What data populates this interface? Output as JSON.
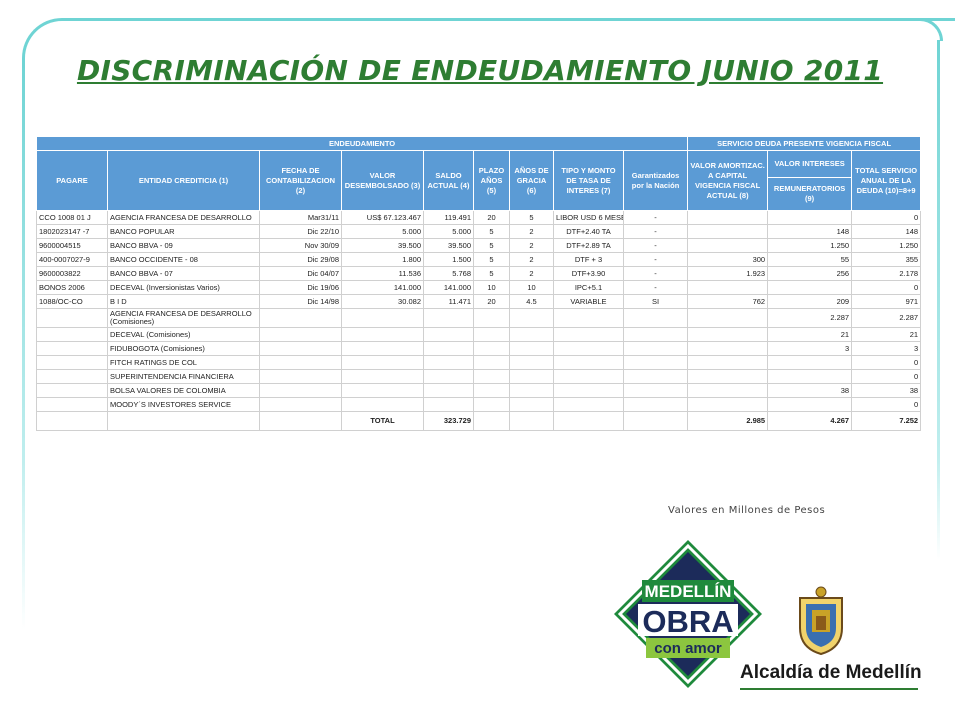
{
  "title": "DISCRIMINACIÓN DE ENDEUDAMIENTO JUNIO 2011",
  "table": {
    "group_headers": [
      "ENDEUDAMIENTO",
      "SERVICIO DEUDA PRESENTE VIGENCIA FISCAL"
    ],
    "headers": {
      "pagare": "PAGARE",
      "entidad": "ENTIDAD CREDITICIA (1)",
      "fecha": "FECHA DE CONTABILIZACION (2)",
      "valor": "VALOR DESEMBOLSADO (3)",
      "saldo": "SALDO ACTUAL (4)",
      "plazo": "PLAZO AÑOS (5)",
      "gracia": "AÑOS DE GRACIA (6)",
      "tipo": "TIPO Y MONTO DE TASA DE INTERES (7)",
      "garantizados": "Garantizados por la Nación",
      "amortiz": "VALOR AMORTIZAC. A CAPITAL VIGENCIA FISCAL ACTUAL (8)",
      "intereses": "VALOR INTERESES",
      "remuneratorios": "REMUNERATORIOS (9)",
      "total": "TOTAL SERVICIO ANUAL DE LA DEUDA (10)=8+9"
    },
    "rows": [
      {
        "pagare": "CCO 1008 01 J",
        "entidad": "AGENCIA FRANCESA DE DESARROLLO",
        "fecha": "Mar31/11",
        "valor": "US$ 67.123.467",
        "saldo": "119.491",
        "plazo": "20",
        "gracia": "5",
        "tipo": "LIBOR USD 6 MESES + 1.70%",
        "garantizados": "-",
        "amortiz": "",
        "intereses": "",
        "total": "0"
      },
      {
        "pagare": "1802023147 -7",
        "entidad": "BANCO POPULAR",
        "fecha": "Dic 22/10",
        "valor": "5.000",
        "saldo": "5.000",
        "plazo": "5",
        "gracia": "2",
        "tipo": "DTF+2.40 TA",
        "garantizados": "-",
        "amortiz": "",
        "intereses": "148",
        "total": "148"
      },
      {
        "pagare": "9600004515",
        "entidad": "BANCO BBVA - 09",
        "fecha": "Nov 30/09",
        "valor": "39.500",
        "saldo": "39.500",
        "plazo": "5",
        "gracia": "2",
        "tipo": "DTF+2.89 TA",
        "garantizados": "-",
        "amortiz": "",
        "intereses": "1.250",
        "total": "1.250"
      },
      {
        "pagare": "400-0007027-9",
        "entidad": "BANCO OCCIDENTE - 08",
        "fecha": "Dic 29/08",
        "valor": "1.800",
        "saldo": "1.500",
        "plazo": "5",
        "gracia": "2",
        "tipo": "DTF + 3",
        "garantizados": "-",
        "amortiz": "300",
        "intereses": "55",
        "total": "355"
      },
      {
        "pagare": "9600003822",
        "entidad": "BANCO BBVA - 07",
        "fecha": "Dic 04/07",
        "valor": "11.536",
        "saldo": "5.768",
        "plazo": "5",
        "gracia": "2",
        "tipo": "DTF+3.90",
        "garantizados": "-",
        "amortiz": "1.923",
        "intereses": "256",
        "total": "2.178"
      },
      {
        "pagare": "BONOS 2006",
        "entidad": "DECEVAL (Inversionistas Varios)",
        "fecha": "Dic 19/06",
        "valor": "141.000",
        "saldo": "141.000",
        "plazo": "10",
        "gracia": "10",
        "tipo": "IPC+5.1",
        "garantizados": "-",
        "amortiz": "",
        "intereses": "",
        "total": "0"
      },
      {
        "pagare": "1088/OC-CO",
        "entidad": "B I D",
        "fecha": "Dic 14/98",
        "valor": "30.082",
        "saldo": "11.471",
        "plazo": "20",
        "gracia": "4.5",
        "tipo": "VARIABLE",
        "garantizados": "SI",
        "amortiz": "762",
        "intereses": "209",
        "total": "971"
      },
      {
        "pagare": "",
        "entidad": "AGENCIA FRANCESA DE DESARROLLO (Comisiones)",
        "fecha": "",
        "valor": "",
        "saldo": "",
        "plazo": "",
        "gracia": "",
        "tipo": "",
        "garantizados": "",
        "amortiz": "",
        "intereses": "2.287",
        "total": "2.287"
      },
      {
        "pagare": "",
        "entidad": "DECEVAL (Comisiones)",
        "fecha": "",
        "valor": "",
        "saldo": "",
        "plazo": "",
        "gracia": "",
        "tipo": "",
        "garantizados": "",
        "amortiz": "",
        "intereses": "21",
        "total": "21"
      },
      {
        "pagare": "",
        "entidad": "FIDUBOGOTA (Comisiones)",
        "fecha": "",
        "valor": "",
        "saldo": "",
        "plazo": "",
        "gracia": "",
        "tipo": "",
        "garantizados": "",
        "amortiz": "",
        "intereses": "3",
        "total": "3"
      },
      {
        "pagare": "",
        "entidad": "FITCH RATINGS DE COL",
        "fecha": "",
        "valor": "",
        "saldo": "",
        "plazo": "",
        "gracia": "",
        "tipo": "",
        "garantizados": "",
        "amortiz": "",
        "intereses": "",
        "total": "0"
      },
      {
        "pagare": "",
        "entidad": "SUPERINTENDENCIA FINANCIERA",
        "fecha": "",
        "valor": "",
        "saldo": "",
        "plazo": "",
        "gracia": "",
        "tipo": "",
        "garantizados": "",
        "amortiz": "",
        "intereses": "",
        "total": "0"
      },
      {
        "pagare": "",
        "entidad": "BOLSA VALORES DE COLOMBIA",
        "fecha": "",
        "valor": "",
        "saldo": "",
        "plazo": "",
        "gracia": "",
        "tipo": "",
        "garantizados": "",
        "amortiz": "",
        "intereses": "38",
        "total": "38"
      },
      {
        "pagare": "",
        "entidad": "MOODY´S INVESTORES SERVICE",
        "fecha": "",
        "valor": "",
        "saldo": "",
        "plazo": "",
        "gracia": "",
        "tipo": "",
        "garantizados": "",
        "amortiz": "",
        "intereses": "",
        "total": "0"
      }
    ],
    "totals": {
      "label": "TOTAL",
      "saldo": "323.729",
      "amortiz": "2.985",
      "intereses": "4.267",
      "total": "7.252"
    }
  },
  "note": "Valores en Millones de Pesos",
  "logo": {
    "line1": "MEDELLÍN",
    "line2": "OBRA",
    "line3": "con amor"
  },
  "alcaldia": "Alcaldía de Medellín",
  "colors": {
    "header_blue": "#5b9bd5",
    "title_green": "#2e7d32",
    "frame_teal": "#6fd4d4",
    "logo_green": "#1f8a3c",
    "logo_navy": "#1c2b5a"
  }
}
